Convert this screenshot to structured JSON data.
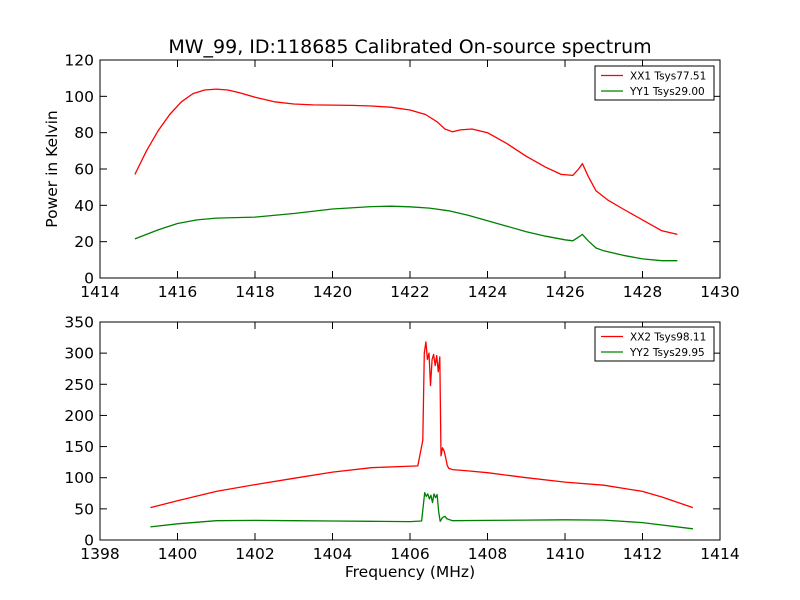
{
  "figure": {
    "title": "MW_99, ID:118685 Calibrated On-source spectrum"
  },
  "colors": {
    "xx": "#ff0000",
    "yy": "#008000",
    "frame": "#000000",
    "background": "#ffffff"
  },
  "chart_data": [
    {
      "type": "line",
      "title": "MW_99, ID:118685 Calibrated On-source spectrum",
      "xlabel": "",
      "ylabel": "Power in Kelvin",
      "xlim": [
        1414,
        1430
      ],
      "ylim": [
        0,
        120
      ],
      "xticks": [
        "1414",
        "1416",
        "1418",
        "1420",
        "1422",
        "1424",
        "1426",
        "1428",
        "1430"
      ],
      "yticks": [
        "0",
        "20",
        "40",
        "60",
        "80",
        "100",
        "120"
      ],
      "grid": false,
      "legend_position": "top-right",
      "series": [
        {
          "name": "XX1 Tsys77.51",
          "color": "#ff0000",
          "x": [
            1414.9,
            1415.2,
            1415.5,
            1415.8,
            1416.1,
            1416.4,
            1416.7,
            1417.0,
            1417.3,
            1417.6,
            1418.0,
            1418.5,
            1419.0,
            1419.5,
            1420.0,
            1420.5,
            1421.0,
            1421.5,
            1422.0,
            1422.4,
            1422.7,
            1422.9,
            1423.1,
            1423.3,
            1423.6,
            1424.0,
            1424.5,
            1425.0,
            1425.5,
            1425.9,
            1426.2,
            1426.35,
            1426.45,
            1426.6,
            1426.8,
            1427.1,
            1427.5,
            1428.0,
            1428.5,
            1428.9
          ],
          "y": [
            57,
            70,
            81,
            90,
            97,
            101.5,
            103.5,
            104,
            103.5,
            102,
            99.5,
            97,
            95.8,
            95.3,
            95.2,
            95,
            94.7,
            94,
            92.5,
            90,
            86,
            82,
            80.5,
            81.5,
            82,
            80,
            74,
            67,
            61,
            57,
            56.5,
            60,
            63,
            56,
            48,
            43,
            38,
            32,
            26,
            24
          ]
        },
        {
          "name": "YY1 Tsys29.00",
          "color": "#008000",
          "x": [
            1414.9,
            1415.5,
            1416.0,
            1416.5,
            1417.0,
            1418.0,
            1419.0,
            1420.0,
            1421.0,
            1421.5,
            1422.0,
            1422.5,
            1423.0,
            1423.5,
            1424.0,
            1424.5,
            1425.0,
            1425.5,
            1426.0,
            1426.2,
            1426.35,
            1426.45,
            1426.6,
            1426.8,
            1427.0,
            1427.5,
            1428.0,
            1428.5,
            1428.9
          ],
          "y": [
            21.5,
            26.5,
            30,
            32,
            33,
            33.5,
            35.5,
            38,
            39.3,
            39.5,
            39.2,
            38.5,
            37,
            34.5,
            31.5,
            28.5,
            25.5,
            23,
            21,
            20.5,
            22.5,
            24,
            20.5,
            16.5,
            15,
            12.5,
            10.5,
            9.5,
            9.5
          ]
        }
      ]
    },
    {
      "type": "line",
      "title": "",
      "xlabel": "Frequency (MHz)",
      "ylabel": "",
      "xlim": [
        1398,
        1414
      ],
      "ylim": [
        0,
        350
      ],
      "xticks": [
        "1398",
        "1400",
        "1402",
        "1404",
        "1406",
        "1408",
        "1410",
        "1412",
        "1414"
      ],
      "yticks": [
        "0",
        "50",
        "100",
        "150",
        "200",
        "250",
        "300",
        "350"
      ],
      "grid": false,
      "legend_position": "top-right",
      "series": [
        {
          "name": "XX2 Tsys98.11",
          "color": "#ff0000",
          "x": [
            1399.3,
            1400.0,
            1401.0,
            1402.0,
            1403.0,
            1404.0,
            1405.0,
            1405.8,
            1406.2,
            1406.33,
            1406.37,
            1406.41,
            1406.45,
            1406.49,
            1406.53,
            1406.57,
            1406.61,
            1406.65,
            1406.69,
            1406.73,
            1406.77,
            1406.8,
            1406.84,
            1406.88,
            1406.92,
            1406.96,
            1407.0,
            1407.1,
            1407.5,
            1408.0,
            1409.0,
            1410.0,
            1411.0,
            1412.0,
            1412.5,
            1413.3
          ],
          "y": [
            52,
            63,
            78,
            89,
            99,
            109,
            116,
            118,
            119,
            160,
            300,
            318,
            290,
            300,
            248,
            290,
            298,
            280,
            296,
            270,
            294,
            135,
            148,
            143,
            132,
            120,
            115,
            113,
            111,
            108,
            100,
            93,
            88,
            78,
            69,
            52
          ]
        },
        {
          "name": "YY2 Tsys29.95",
          "color": "#008000",
          "x": [
            1399.3,
            1400.0,
            1401.0,
            1402.0,
            1403.0,
            1404.0,
            1405.0,
            1406.0,
            1406.3,
            1406.38,
            1406.42,
            1406.46,
            1406.5,
            1406.54,
            1406.58,
            1406.62,
            1406.66,
            1406.7,
            1406.74,
            1406.78,
            1406.84,
            1406.9,
            1406.95,
            1407.1,
            1408.0,
            1409.0,
            1410.0,
            1411.0,
            1412.0,
            1413.3
          ],
          "y": [
            21,
            26,
            31,
            31.5,
            31,
            30.5,
            30,
            29.5,
            30.5,
            76,
            70,
            74,
            66,
            72,
            60,
            74,
            68,
            73,
            45,
            30,
            36,
            38,
            34,
            31,
            31.5,
            32,
            32.5,
            32,
            28,
            18
          ]
        }
      ]
    }
  ]
}
